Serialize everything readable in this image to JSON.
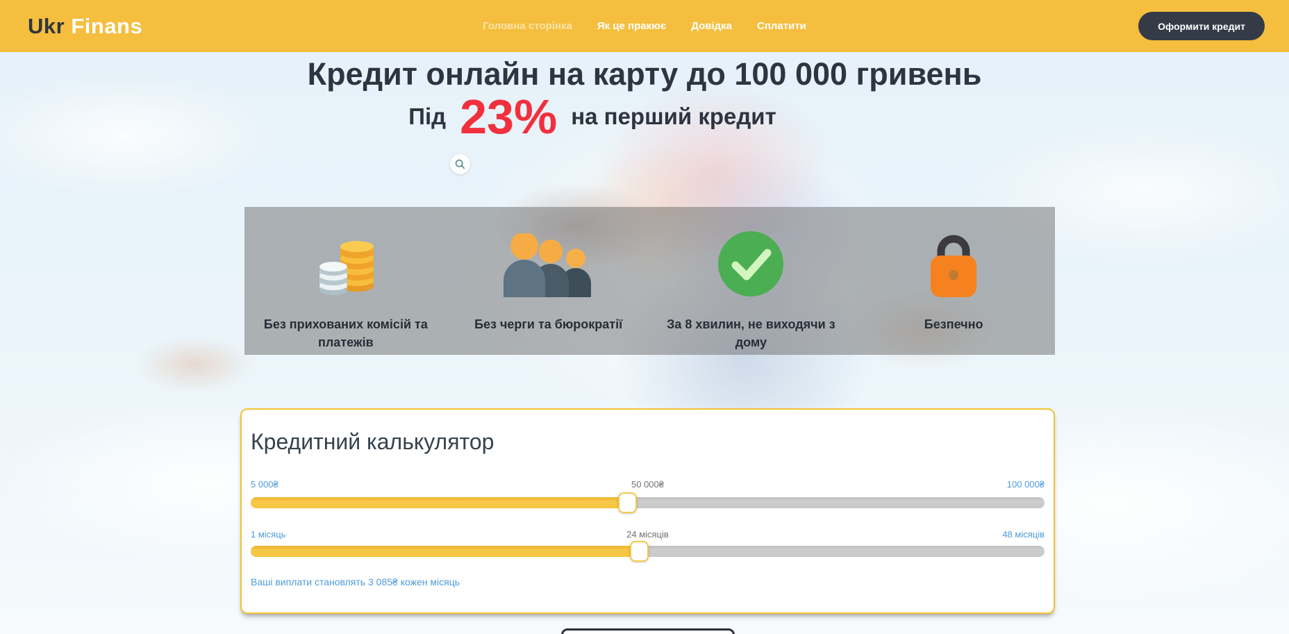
{
  "brand": {
    "name_primary": "Ukr",
    "name_secondary": "Finans"
  },
  "nav": {
    "items": [
      {
        "label": "Головна сторінка",
        "active": true
      },
      {
        "label": "Як це пракює",
        "active": false
      },
      {
        "label": "Довідка",
        "active": false
      },
      {
        "label": "Сплатити",
        "active": false
      }
    ],
    "cta_label": "Оформити кредит"
  },
  "hero": {
    "title": "Кредит онлайн на карту до 100 000 гривень",
    "subtitle_prefix": "Під",
    "subtitle_highlight": "23%",
    "subtitle_suffix": "на перший кредит",
    "search_icon": "search-icon"
  },
  "features": [
    {
      "icon": "coins-icon",
      "label": "Без прихованих комісій та платежів"
    },
    {
      "icon": "people-icon",
      "label": "Без черги та бюрократії"
    },
    {
      "icon": "check-icon",
      "label": "За 8 хвилин, не виходячи з дому"
    },
    {
      "icon": "lock-icon",
      "label": "Безпечно"
    }
  ],
  "calculator": {
    "title": "Кредитний калькулятор",
    "amount": {
      "min_label": "5 000₴",
      "current_label": "50 000₴",
      "max_label": "100 000₴",
      "min_value": 5000,
      "current_value": 50000,
      "max_value": 100000,
      "percent": 47.4
    },
    "term": {
      "min_label": "1 місяць",
      "current_label": "24 місяців",
      "max_label": "48 місяців",
      "min_value": 1,
      "current_value": 24,
      "max_value": 48,
      "percent": 48.9
    },
    "payment_text": "Ваші виплати становлять 3 085₴ кожен місяць"
  },
  "colors": {
    "brand_yellow": "#F5BE3E",
    "dark_navy": "#2E3440",
    "accent_red": "#F1303E",
    "link_blue": "#4D9AD9",
    "slider_fill": "#F5C63E",
    "slider_track": "#C9C9C9",
    "card_border": "#F2C230",
    "check_green": "#4CAE52",
    "lock_orange": "#F5821F"
  }
}
